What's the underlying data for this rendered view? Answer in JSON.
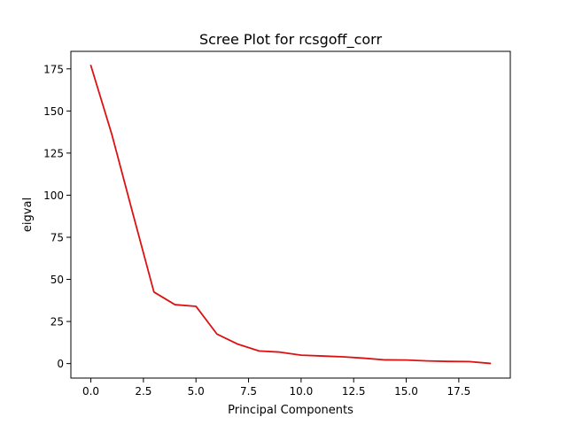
{
  "chart_data": {
    "type": "line",
    "title": "Scree Plot for rcsgoff_corr",
    "xlabel": "Principal Components",
    "ylabel": "eigval",
    "xlim": [
      -0.95,
      19.95
    ],
    "ylim": [
      -8.6,
      185.4
    ],
    "xticks": [
      0.0,
      2.5,
      5.0,
      7.5,
      10.0,
      12.5,
      15.0,
      17.5
    ],
    "xtick_labels": [
      "0.0",
      "2.5",
      "5.0",
      "7.5",
      "10.0",
      "12.5",
      "15.0",
      "17.5"
    ],
    "yticks": [
      0,
      25,
      50,
      75,
      100,
      125,
      150,
      175
    ],
    "ytick_labels": [
      "0",
      "25",
      "50",
      "75",
      "100",
      "125",
      "150",
      "175"
    ],
    "grid": false,
    "legend": "none",
    "series": [
      {
        "color": "#dd1111",
        "x": [
          0,
          1,
          2,
          3,
          4,
          5,
          6,
          7,
          8,
          9,
          10,
          11,
          12,
          13,
          14,
          15,
          16,
          17,
          18,
          19
        ],
        "y": [
          177.0,
          136.0,
          89.0,
          42.5,
          35.0,
          34.0,
          17.5,
          11.5,
          7.5,
          6.8,
          5.0,
          4.5,
          4.0,
          3.2,
          2.2,
          2.1,
          1.6,
          1.3,
          1.2,
          0.1
        ]
      }
    ]
  }
}
